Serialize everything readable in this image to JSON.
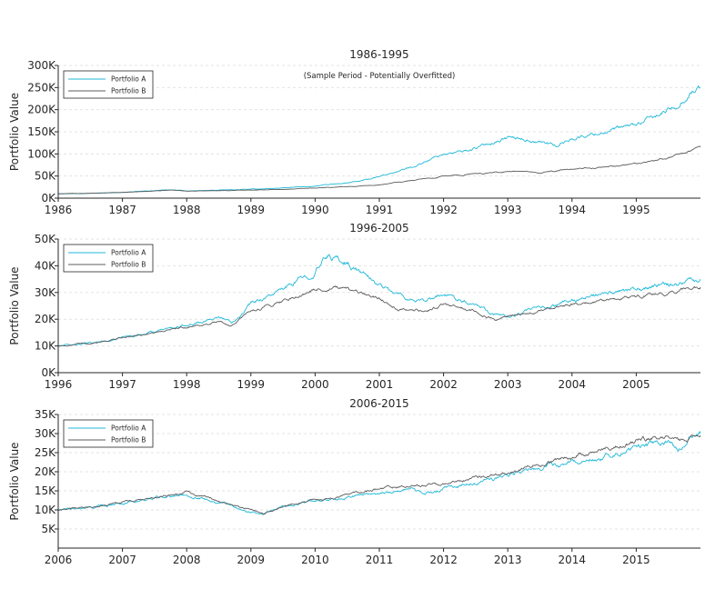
{
  "figure": {
    "background": "#ffffff",
    "grid": "horizontal dashed",
    "legend_location": "upper-left",
    "series_colors": {
      "Portfolio A": "#1fb8d8",
      "Portfolio B": "#5c5c5c"
    }
  },
  "chart_data": [
    {
      "type": "line",
      "title": "1986-1995",
      "subtitle": "(Sample Period - Potentially Overfitted)",
      "ylabel": "Portfolio Value",
      "xlabel": "",
      "xlim": [
        1986,
        1996
      ],
      "ylim": [
        0,
        300000
      ],
      "yticks": [
        0,
        50000,
        100000,
        150000,
        200000,
        250000,
        300000
      ],
      "ytick_labels": [
        "0K",
        "50K",
        "100K",
        "150K",
        "200K",
        "250K",
        "300K"
      ],
      "xticks": [
        1986,
        1987,
        1988,
        1989,
        1990,
        1991,
        1992,
        1993,
        1994,
        1995
      ],
      "xtick_labels": [
        "1986",
        "1987",
        "1988",
        "1989",
        "1990",
        "1991",
        "1992",
        "1993",
        "1994",
        "1995"
      ],
      "grid": true,
      "legend": "upper-left",
      "series": [
        {
          "name": "Portfolio A",
          "color": "#1fb8d8",
          "x": [
            1986.0,
            1986.5,
            1987.0,
            1987.5,
            1987.8,
            1988.0,
            1988.5,
            1989.0,
            1989.5,
            1990.0,
            1990.4,
            1990.7,
            1991.0,
            1991.5,
            1992.0,
            1992.3,
            1992.6,
            1993.0,
            1993.3,
            1993.6,
            1993.75,
            1994.0,
            1994.5,
            1995.0,
            1995.3,
            1995.6,
            1995.85,
            1996.0
          ],
          "y": [
            10000,
            11000,
            13000,
            17000,
            19000,
            16000,
            18000,
            20000,
            23000,
            27000,
            33000,
            38000,
            48000,
            70000,
            100000,
            105000,
            118000,
            138000,
            132000,
            125000,
            118000,
            135000,
            150000,
            165000,
            185000,
            205000,
            240000,
            250000
          ]
        },
        {
          "name": "Portfolio B",
          "color": "#5c5c5c",
          "x": [
            1986.0,
            1986.5,
            1987.0,
            1987.5,
            1987.8,
            1988.0,
            1988.5,
            1989.0,
            1989.5,
            1990.0,
            1990.5,
            1991.0,
            1991.5,
            1992.0,
            1992.5,
            1993.0,
            1993.5,
            1994.0,
            1994.5,
            1995.0,
            1995.5,
            1996.0
          ],
          "y": [
            10000,
            11000,
            13000,
            16000,
            18000,
            16000,
            17000,
            18000,
            20000,
            23000,
            26000,
            30000,
            40000,
            50000,
            55000,
            60000,
            58000,
            65000,
            70000,
            78000,
            92000,
            115000
          ]
        }
      ]
    },
    {
      "type": "line",
      "title": "1996-2005",
      "ylabel": "Portfolio Value",
      "xlabel": "",
      "xlim": [
        1996,
        2006
      ],
      "ylim": [
        0,
        50000
      ],
      "yticks": [
        0,
        10000,
        20000,
        30000,
        40000,
        50000
      ],
      "ytick_labels": [
        "0K",
        "10K",
        "20K",
        "30K",
        "40K",
        "50K"
      ],
      "xticks": [
        1996,
        1997,
        1998,
        1999,
        2000,
        2001,
        2002,
        2003,
        2004,
        2005
      ],
      "xtick_labels": [
        "1996",
        "1997",
        "1998",
        "1999",
        "2000",
        "2001",
        "2002",
        "2003",
        "2004",
        "2005"
      ],
      "grid": true,
      "legend": "upper-left",
      "series": [
        {
          "name": "Portfolio A",
          "color": "#1fb8d8",
          "x": [
            1996.0,
            1996.5,
            1997.0,
            1997.5,
            1998.0,
            1998.5,
            1998.7,
            1999.0,
            1999.5,
            2000.0,
            2000.2,
            2000.5,
            2000.8,
            2001.0,
            2001.3,
            2001.7,
            2002.0,
            2002.5,
            2002.8,
            2003.0,
            2003.5,
            2004.0,
            2004.5,
            2005.0,
            2005.5,
            2006.0
          ],
          "y": [
            10000,
            11000,
            13000,
            15500,
            17500,
            21000,
            19000,
            26000,
            31000,
            38000,
            44000,
            41000,
            36000,
            33000,
            29000,
            26000,
            29000,
            26000,
            22000,
            21000,
            24000,
            27000,
            29000,
            31000,
            33000,
            35000
          ]
        },
        {
          "name": "Portfolio B",
          "color": "#5c5c5c",
          "x": [
            1996.0,
            1996.5,
            1997.0,
            1997.5,
            1998.0,
            1998.5,
            1998.7,
            1999.0,
            1999.5,
            2000.0,
            2000.3,
            2000.6,
            2001.0,
            2001.3,
            2001.7,
            2002.0,
            2002.5,
            2002.8,
            2003.0,
            2003.5,
            2004.0,
            2004.5,
            2005.0,
            2005.5,
            2006.0
          ],
          "y": [
            10000,
            11000,
            13000,
            15000,
            17000,
            19000,
            17500,
            23000,
            27000,
            31000,
            32000,
            30000,
            28000,
            24000,
            23000,
            25500,
            23000,
            19500,
            21000,
            23000,
            25500,
            27000,
            28500,
            30000,
            32000
          ]
        }
      ]
    },
    {
      "type": "line",
      "title": "2006-2015",
      "ylabel": "Portfolio Value",
      "xlabel": "",
      "xlim": [
        2006,
        2016
      ],
      "ylim": [
        0,
        35000
      ],
      "yticks": [
        5000,
        10000,
        15000,
        20000,
        25000,
        30000,
        35000
      ],
      "ytick_labels": [
        "5K",
        "10K",
        "15K",
        "20K",
        "25K",
        "30K",
        "35K"
      ],
      "xticks": [
        2006,
        2007,
        2008,
        2009,
        2010,
        2011,
        2012,
        2013,
        2014,
        2015
      ],
      "xtick_labels": [
        "2006",
        "2007",
        "2008",
        "2009",
        "2010",
        "2011",
        "2012",
        "2013",
        "2014",
        "2015"
      ],
      "grid": true,
      "legend": "upper-left",
      "series": [
        {
          "name": "Portfolio A",
          "color": "#1fb8d8",
          "x": [
            2006.0,
            2006.5,
            2007.0,
            2007.5,
            2008.0,
            2008.5,
            2008.8,
            2009.0,
            2009.2,
            2009.5,
            2010.0,
            2010.5,
            2011.0,
            2011.5,
            2011.7,
            2012.0,
            2012.5,
            2013.0,
            2013.5,
            2014.0,
            2014.5,
            2015.0,
            2015.5,
            2015.65,
            2015.8,
            2016.0
          ],
          "y": [
            10000,
            10500,
            12000,
            13000,
            14000,
            12000,
            10500,
            9500,
            9000,
            11000,
            12500,
            13500,
            14500,
            15500,
            14000,
            15500,
            17000,
            19000,
            21000,
            22500,
            24000,
            26500,
            28000,
            25500,
            28000,
            30000
          ]
        },
        {
          "name": "Portfolio B",
          "color": "#5c5c5c",
          "x": [
            2006.0,
            2006.5,
            2007.0,
            2007.5,
            2008.0,
            2008.5,
            2008.8,
            2009.0,
            2009.2,
            2009.5,
            2010.0,
            2010.5,
            2011.0,
            2011.5,
            2012.0,
            2012.5,
            2013.0,
            2013.5,
            2014.0,
            2014.5,
            2015.0,
            2015.5,
            2015.7,
            2016.0
          ],
          "y": [
            10000,
            10500,
            12000,
            13000,
            14500,
            12500,
            11000,
            10000,
            9000,
            11000,
            12500,
            14000,
            15500,
            16500,
            16500,
            18500,
            20000,
            22000,
            24000,
            26000,
            28000,
            29500,
            28000,
            29500
          ]
        }
      ]
    }
  ]
}
